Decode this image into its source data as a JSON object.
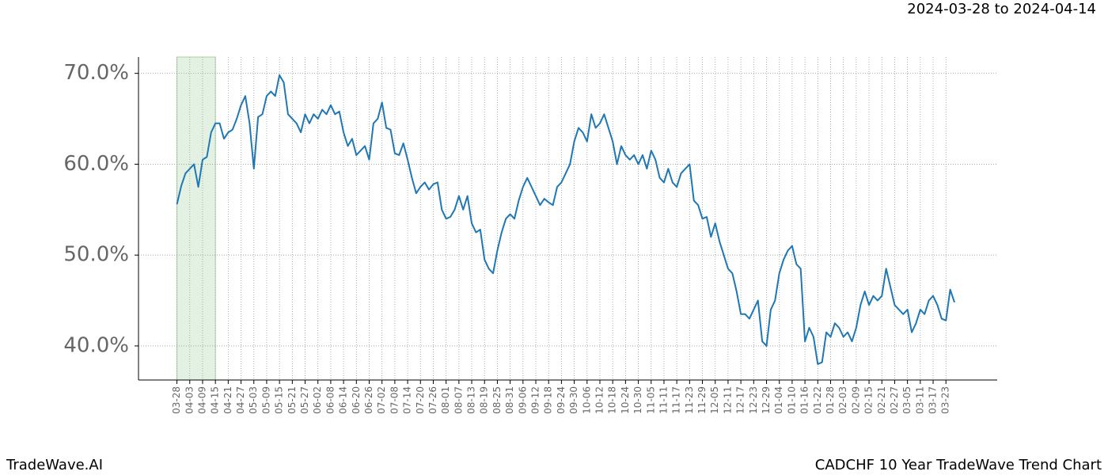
{
  "chart_data": {
    "type": "line",
    "title": "CADCHF 10 Year TradeWave Trend Chart",
    "subtitle": "2024-03-28 to 2024-04-14",
    "watermark": "TradeWave.AI",
    "x": [
      "03-28",
      null,
      null,
      "04-03",
      null,
      null,
      "04-09",
      null,
      null,
      "04-15",
      null,
      null,
      "04-21",
      null,
      null,
      "04-27",
      null,
      null,
      "05-03",
      null,
      null,
      "05-09",
      null,
      null,
      "05-15",
      null,
      null,
      "05-21",
      null,
      null,
      "05-27",
      null,
      null,
      "06-02",
      null,
      null,
      "06-08",
      null,
      null,
      "06-14",
      null,
      null,
      "06-20",
      null,
      null,
      "06-26",
      null,
      null,
      "07-02",
      null,
      null,
      "07-08",
      null,
      null,
      "07-14",
      null,
      null,
      "07-20",
      null,
      null,
      "07-26",
      null,
      null,
      "08-01",
      null,
      null,
      "08-07",
      null,
      null,
      "08-13",
      null,
      null,
      "08-19",
      null,
      null,
      "08-25",
      null,
      null,
      "08-31",
      null,
      null,
      "09-06",
      null,
      null,
      "09-12",
      null,
      null,
      "09-18",
      null,
      null,
      "09-24",
      null,
      null,
      "09-30",
      null,
      null,
      "10-06",
      null,
      null,
      "10-12",
      null,
      null,
      "10-18",
      null,
      null,
      "10-24",
      null,
      null,
      "10-30",
      null,
      null,
      "11-05",
      null,
      null,
      "11-11",
      null,
      null,
      "11-17",
      null,
      null,
      "11-23",
      null,
      null,
      "11-29",
      null,
      null,
      "12-05",
      null,
      null,
      "12-11",
      null,
      null,
      "12-17",
      null,
      null,
      "12-23",
      null,
      null,
      "12-29",
      null,
      null,
      "01-04",
      null,
      null,
      "01-10",
      null,
      null,
      "01-16",
      null,
      null,
      "01-22",
      null,
      null,
      "01-28",
      null,
      null,
      "02-03",
      null,
      null,
      "02-09",
      null,
      null,
      "02-15",
      null,
      null,
      "02-21",
      null,
      null,
      "02-27",
      null,
      null,
      "03-05",
      null,
      null,
      "03-11",
      null,
      null,
      "03-17",
      null,
      null,
      "03-23",
      null,
      null
    ],
    "series": [
      {
        "color": "#1f77b4",
        "values": [
          55.6,
          57.6,
          59.0,
          59.5,
          60.0,
          57.5,
          60.5,
          60.8,
          63.5,
          64.5,
          64.5,
          62.8,
          63.5,
          63.8,
          65.0,
          66.5,
          67.5,
          64.5,
          59.5,
          65.2,
          65.5,
          67.5,
          68.0,
          67.5,
          69.8,
          69.0,
          65.5,
          65.0,
          64.5,
          63.5,
          65.5,
          64.5,
          65.5,
          65.0,
          66.0,
          65.5,
          66.5,
          65.5,
          65.8,
          63.5,
          62.0,
          62.8,
          61.0,
          61.5,
          62.0,
          60.5,
          64.5,
          65.0,
          66.8,
          64.0,
          63.8,
          61.2,
          61.0,
          62.3,
          60.5,
          58.5,
          56.8,
          57.5,
          58.0,
          57.2,
          57.8,
          58.0,
          55.0,
          54.0,
          54.2,
          55.0,
          56.5,
          55.0,
          56.5,
          53.5,
          52.5,
          52.8,
          49.5,
          48.5,
          48.0,
          50.5,
          52.5,
          54.0,
          54.5,
          54.0,
          56.0,
          57.5,
          58.5,
          57.5,
          56.5,
          55.5,
          56.2,
          55.8,
          55.5,
          57.5,
          58.0,
          59.0,
          60.0,
          62.5,
          64.0,
          63.5,
          62.5,
          65.5,
          64.0,
          64.5,
          65.5,
          64.0,
          62.5,
          60.0,
          62.0,
          61.0,
          60.5,
          61.0,
          60.0,
          61.0,
          59.5,
          61.5,
          60.5,
          58.5,
          58.0,
          59.5,
          58.0,
          57.5,
          59.0,
          59.5,
          60.0,
          56.0,
          55.5,
          54.0,
          54.2,
          52.0,
          53.5,
          51.5,
          50.0,
          48.5,
          48.0,
          46.0,
          43.5,
          43.5,
          43.0,
          44.0,
          45.0,
          40.5,
          40.0,
          44.0,
          45.0,
          48.0,
          49.5,
          50.5,
          51.0,
          49.0,
          48.5,
          40.5,
          42.0,
          41.0,
          38.0,
          38.2,
          41.5,
          41.0,
          42.5,
          42.0,
          41.0,
          41.5,
          40.5,
          42.0,
          44.5,
          46.0,
          44.5,
          45.5,
          45.0,
          45.5,
          48.5,
          46.5,
          44.5,
          44.0,
          43.5,
          44.0,
          41.5,
          42.5,
          44.0,
          43.5,
          45.0,
          45.5,
          44.5,
          43.0,
          42.8,
          46.2,
          44.8
        ]
      }
    ],
    "ylim": [
      36.25,
      71.8
    ],
    "yticks": [
      {
        "value": 40,
        "label": "40.0%"
      },
      {
        "value": 50,
        "label": "50.0%"
      },
      {
        "value": 60,
        "label": "60.0%"
      },
      {
        "value": 70,
        "label": "70.0%"
      }
    ],
    "grid": true,
    "shade": {
      "from": "03-28",
      "to": "04-15",
      "color": "#e3f1e3"
    }
  }
}
